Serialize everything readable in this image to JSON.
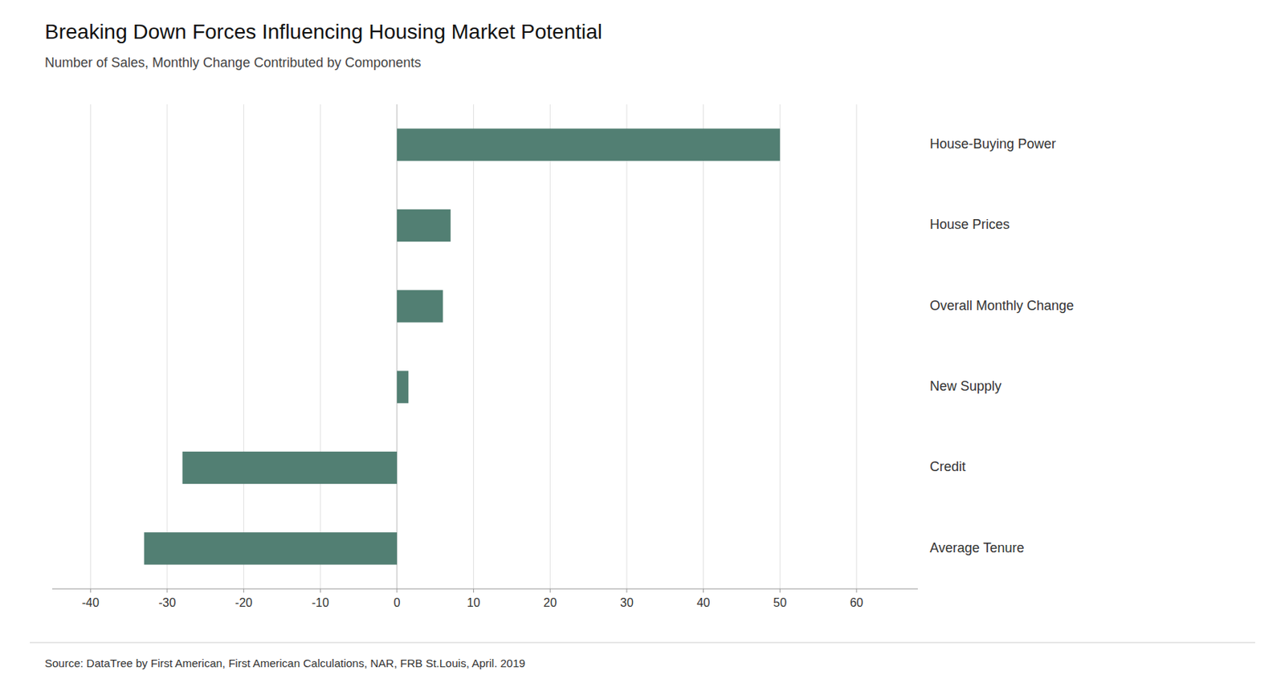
{
  "chart_data": {
    "type": "bar",
    "orientation": "horizontal",
    "title": "Breaking Down Forces Influencing Housing Market Potential",
    "subtitle": "Number of Sales, Monthly Change Contributed by Components",
    "source": "Source: DataTree by First American, First American Calculations, NAR, FRB St.Louis, April. 2019",
    "categories": [
      "House-Buying Power",
      "House Prices",
      "Overall Monthly Change",
      "New Supply",
      "Credit",
      "Average Tenure"
    ],
    "values": [
      50,
      7,
      6,
      1.5,
      -28,
      -33
    ],
    "color": "#527f73",
    "xlim": [
      -45,
      68
    ],
    "xticks": [
      -40,
      -30,
      -20,
      -10,
      0,
      10,
      20,
      30,
      40,
      50,
      60
    ],
    "grid": true
  }
}
